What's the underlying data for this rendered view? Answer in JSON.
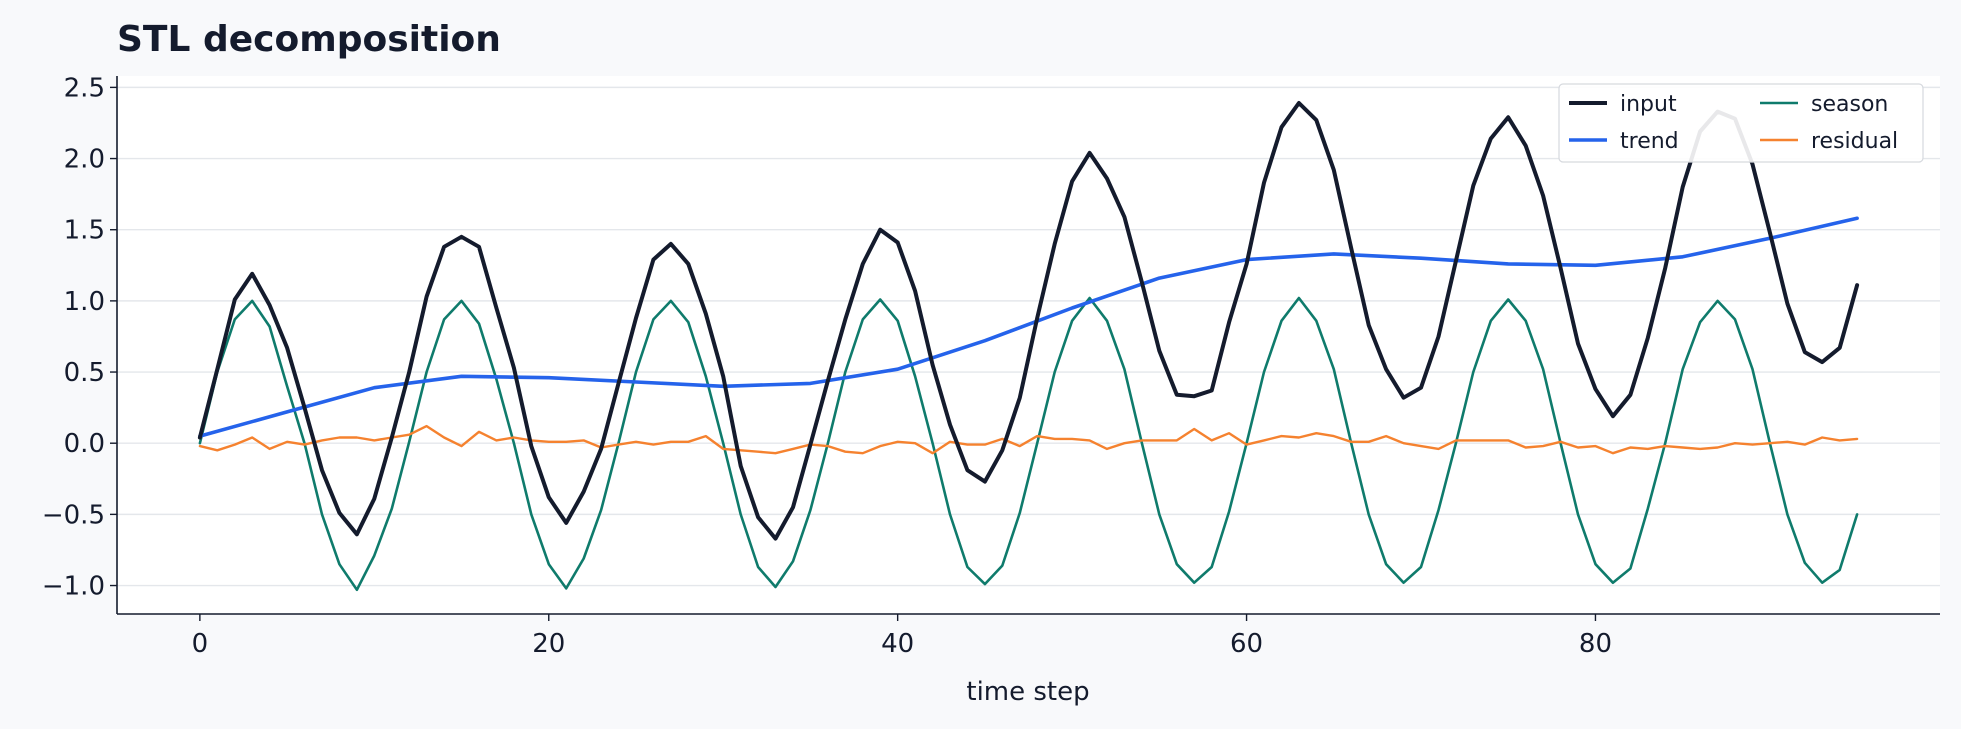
{
  "chart_data": {
    "type": "line",
    "title": "STL decomposition",
    "xlabel": "time step",
    "ylabel": "",
    "xlim": [
      -4.75,
      99.75
    ],
    "ylim": [
      -1.2,
      2.58
    ],
    "xticks": [
      0,
      20,
      40,
      60,
      80
    ],
    "xtick_labels": [
      "0",
      "20",
      "40",
      "60",
      "80"
    ],
    "yticks": [
      -1.0,
      -0.5,
      0.0,
      0.5,
      1.0,
      1.5,
      2.0,
      2.5
    ],
    "ytick_labels": [
      "−1.0",
      "−0.5",
      "0.0",
      "0.5",
      "1.0",
      "1.5",
      "2.0",
      "2.5"
    ],
    "grid": "horizontal",
    "legend": {
      "position": "top-right",
      "columns": 2
    },
    "series": [
      {
        "name": "input",
        "color": "#141b2d",
        "x": [
          0,
          1,
          2,
          3,
          4,
          5,
          6,
          7,
          8,
          9,
          10,
          11,
          12,
          13,
          14,
          15,
          16,
          17,
          18,
          19,
          20,
          21,
          22,
          23,
          24,
          25,
          26,
          27,
          28,
          29,
          30,
          31,
          32,
          33,
          34,
          35,
          36,
          37,
          38,
          39,
          40,
          41,
          42,
          43,
          44,
          45,
          46,
          47,
          48,
          49,
          50,
          51,
          52,
          53,
          54,
          55,
          56,
          57,
          58,
          59,
          60,
          61,
          62,
          63,
          64,
          65,
          66,
          67,
          68,
          69,
          70,
          71,
          72,
          73,
          74,
          75,
          76,
          77,
          78,
          79,
          80,
          81,
          82,
          83,
          84,
          85,
          86,
          87,
          88,
          89,
          90,
          91,
          92,
          93,
          94,
          95
        ],
        "values": [
          0.04,
          0.52,
          1.01,
          1.19,
          0.97,
          0.67,
          0.25,
          -0.19,
          -0.49,
          -0.64,
          -0.39,
          0.04,
          0.5,
          1.03,
          1.38,
          1.45,
          1.38,
          0.95,
          0.53,
          -0.02,
          -0.38,
          -0.56,
          -0.34,
          -0.04,
          0.42,
          0.88,
          1.29,
          1.4,
          1.26,
          0.91,
          0.47,
          -0.16,
          -0.52,
          -0.67,
          -0.45,
          -0.01,
          0.44,
          0.87,
          1.26,
          1.5,
          1.41,
          1.07,
          0.55,
          0.13,
          -0.19,
          -0.27,
          -0.05,
          0.32,
          0.88,
          1.4,
          1.84,
          2.04,
          1.86,
          1.59,
          1.13,
          0.65,
          0.34,
          0.33,
          0.37,
          0.85,
          1.26,
          1.83,
          2.22,
          2.39,
          2.27,
          1.92,
          1.37,
          0.83,
          0.52,
          0.32,
          0.39,
          0.75,
          1.28,
          1.81,
          2.14,
          2.29,
          2.09,
          1.74,
          1.23,
          0.7,
          0.38,
          0.19,
          0.34,
          0.74,
          1.23,
          1.8,
          2.19,
          2.33,
          2.28,
          1.96,
          1.48,
          0.98,
          0.64,
          0.57,
          0.67,
          1.11
        ]
      },
      {
        "name": "trend",
        "color": "#2563eb",
        "x": [
          0,
          5,
          10,
          15,
          20,
          25,
          30,
          35,
          40,
          45,
          50,
          55,
          60,
          65,
          70,
          75,
          80,
          85,
          90,
          95
        ],
        "values": [
          0.05,
          0.22,
          0.39,
          0.47,
          0.46,
          0.43,
          0.4,
          0.42,
          0.52,
          0.72,
          0.95,
          1.16,
          1.29,
          1.33,
          1.3,
          1.26,
          1.25,
          1.31,
          1.44,
          1.58
        ]
      },
      {
        "name": "season",
        "color": "#0f7b6c",
        "x": [
          0,
          1,
          2,
          3,
          4,
          5,
          6,
          7,
          8,
          9,
          10,
          11,
          12,
          13,
          14,
          15,
          16,
          17,
          18,
          19,
          20,
          21,
          22,
          23,
          24,
          25,
          26,
          27,
          28,
          29,
          30,
          31,
          32,
          33,
          34,
          35,
          36,
          37,
          38,
          39,
          40,
          41,
          42,
          43,
          44,
          45,
          46,
          47,
          48,
          49,
          50,
          51,
          52,
          53,
          54,
          55,
          56,
          57,
          58,
          59,
          60,
          61,
          62,
          63,
          64,
          65,
          66,
          67,
          68,
          69,
          70,
          71,
          72,
          73,
          74,
          75,
          76,
          77,
          78,
          79,
          80,
          81,
          82,
          83,
          84,
          85,
          86,
          87,
          88,
          89,
          90,
          91,
          92,
          93,
          94,
          95
        ],
        "values": [
          0.0,
          0.5,
          0.87,
          1.0,
          0.82,
          0.4,
          0.0,
          -0.5,
          -0.85,
          -1.03,
          -0.79,
          -0.46,
          0.01,
          0.5,
          0.87,
          1.0,
          0.84,
          0.45,
          0.0,
          -0.5,
          -0.85,
          -1.02,
          -0.81,
          -0.47,
          0.0,
          0.5,
          0.87,
          1.0,
          0.85,
          0.47,
          0.0,
          -0.5,
          -0.87,
          -1.01,
          -0.83,
          -0.47,
          0.0,
          0.5,
          0.87,
          1.01,
          0.86,
          0.47,
          0.0,
          -0.5,
          -0.87,
          -0.99,
          -0.86,
          -0.49,
          0.0,
          0.5,
          0.86,
          1.02,
          0.86,
          0.52,
          0.0,
          -0.5,
          -0.85,
          -0.98,
          -0.87,
          -0.48,
          0.0,
          0.5,
          0.86,
          1.02,
          0.86,
          0.52,
          0.0,
          -0.5,
          -0.85,
          -0.98,
          -0.87,
          -0.47,
          0.0,
          0.5,
          0.86,
          1.01,
          0.86,
          0.52,
          0.0,
          -0.5,
          -0.85,
          -0.98,
          -0.88,
          -0.46,
          0.0,
          0.52,
          0.85,
          1.0,
          0.87,
          0.52,
          0.0,
          -0.5,
          -0.84,
          -0.98,
          -0.89,
          -0.5
        ]
      },
      {
        "name": "residual",
        "color": "#f5822f",
        "x": [
          0,
          1,
          2,
          3,
          4,
          5,
          6,
          7,
          8,
          9,
          10,
          11,
          12,
          13,
          14,
          15,
          16,
          17,
          18,
          19,
          20,
          21,
          22,
          23,
          24,
          25,
          26,
          27,
          28,
          29,
          30,
          31,
          32,
          33,
          34,
          35,
          36,
          37,
          38,
          39,
          40,
          41,
          42,
          43,
          44,
          45,
          46,
          47,
          48,
          49,
          50,
          51,
          52,
          53,
          54,
          55,
          56,
          57,
          58,
          59,
          60,
          61,
          62,
          63,
          64,
          65,
          66,
          67,
          68,
          69,
          70,
          71,
          72,
          73,
          74,
          75,
          76,
          77,
          78,
          79,
          80,
          81,
          82,
          83,
          84,
          85,
          86,
          87,
          88,
          89,
          90,
          91,
          92,
          93,
          94,
          95
        ],
        "values": [
          -0.02,
          -0.05,
          -0.01,
          0.04,
          -0.04,
          0.01,
          -0.01,
          0.02,
          0.04,
          0.04,
          0.02,
          0.04,
          0.06,
          0.12,
          0.04,
          -0.02,
          0.08,
          0.02,
          0.04,
          0.02,
          0.01,
          0.01,
          0.02,
          -0.03,
          -0.01,
          0.01,
          -0.01,
          0.01,
          0.01,
          0.05,
          -0.04,
          -0.05,
          -0.06,
          -0.07,
          -0.04,
          -0.01,
          -0.02,
          -0.06,
          -0.07,
          -0.02,
          0.01,
          0.0,
          -0.07,
          0.01,
          -0.01,
          -0.01,
          0.03,
          -0.02,
          0.05,
          0.03,
          0.03,
          0.02,
          -0.04,
          0.0,
          0.02,
          0.02,
          0.02,
          0.1,
          0.02,
          0.07,
          -0.01,
          0.02,
          0.05,
          0.04,
          0.07,
          0.05,
          0.01,
          0.01,
          0.05,
          0.0,
          -0.02,
          -0.04,
          0.02,
          0.02,
          0.02,
          0.02,
          -0.03,
          -0.02,
          0.01,
          -0.03,
          -0.02,
          -0.07,
          -0.03,
          -0.04,
          -0.02,
          -0.03,
          -0.04,
          -0.03,
          0.0,
          -0.01,
          0.0,
          0.01,
          -0.01,
          0.04,
          0.02,
          0.03
        ]
      }
    ]
  }
}
